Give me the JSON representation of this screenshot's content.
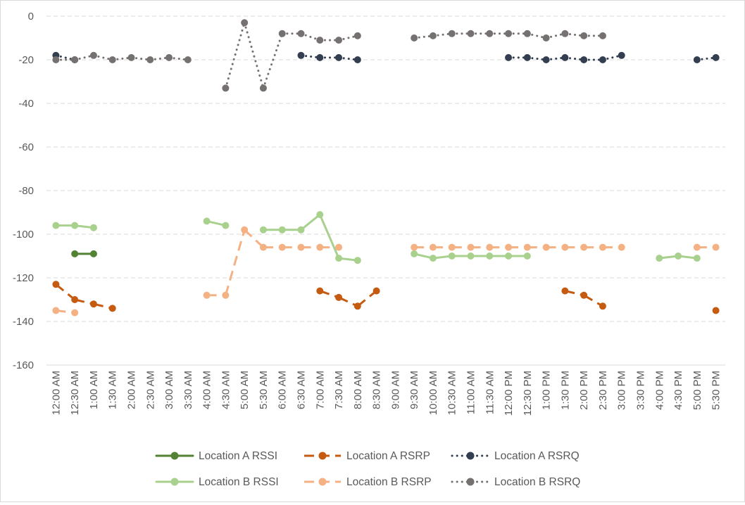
{
  "chart_data": {
    "type": "line",
    "title": "",
    "xlabel": "",
    "ylabel": "",
    "ylim": [
      -160,
      0
    ],
    "y_ticks": [
      0,
      -20,
      -40,
      -60,
      -80,
      -100,
      -120,
      -140,
      -160
    ],
    "y_tick_labels": [
      "0",
      "-20",
      "-40",
      "-60",
      "-80",
      "-100",
      "-120",
      "-140",
      "-160"
    ],
    "grid": "horizontal dashed",
    "legend_position": "bottom",
    "categories": [
      "12:00 AM",
      "12:30 AM",
      "1:00 AM",
      "1:30 AM",
      "2:00 AM",
      "2:30 AM",
      "3:00 AM",
      "3:30 AM",
      "4:00 AM",
      "4:30 AM",
      "5:00 AM",
      "5:30 AM",
      "6:00 AM",
      "6:30 AM",
      "7:00 AM",
      "7:30 AM",
      "8:00 AM",
      "8:30 AM",
      "9:00 AM",
      "9:30 AM",
      "10:00 AM",
      "10:30 AM",
      "11:00 AM",
      "11:30 AM",
      "12:00 PM",
      "12:30 PM",
      "1:00 PM",
      "1:30 PM",
      "2:00 PM",
      "2:30 PM",
      "3:00 PM",
      "3:30 PM",
      "4:00 PM",
      "4:30 PM",
      "5:00 PM",
      "5:30 PM"
    ],
    "series": [
      {
        "name": "Location A RSSI",
        "color": "#548235",
        "style": "solid",
        "values": [
          null,
          -109,
          -109,
          null,
          null,
          null,
          null,
          null,
          null,
          null,
          null,
          null,
          null,
          null,
          null,
          null,
          null,
          null,
          null,
          null,
          null,
          null,
          null,
          null,
          null,
          null,
          null,
          null,
          null,
          null,
          null,
          null,
          null,
          null,
          null,
          null
        ]
      },
      {
        "name": "Location A RSRP",
        "color": "#C55A11",
        "style": "dash",
        "values": [
          -123,
          -130,
          -132,
          -134,
          null,
          null,
          null,
          null,
          null,
          null,
          null,
          null,
          null,
          null,
          -126,
          -129,
          -133,
          -126,
          null,
          null,
          null,
          null,
          null,
          null,
          null,
          null,
          null,
          -126,
          -128,
          -133,
          null,
          null,
          null,
          null,
          null,
          -135
        ]
      },
      {
        "name": "Location A RSRQ",
        "color": "#333F50",
        "style": "dot",
        "values": [
          -18,
          -20,
          null,
          null,
          null,
          null,
          null,
          null,
          null,
          null,
          null,
          null,
          null,
          -18,
          -19,
          -19,
          -20,
          null,
          null,
          null,
          null,
          null,
          null,
          null,
          -19,
          -19,
          -20,
          -19,
          -20,
          -20,
          -18,
          null,
          null,
          null,
          -20,
          -19
        ]
      },
      {
        "name": "Location B RSSI",
        "color": "#A9D18E",
        "style": "solid",
        "values": [
          -96,
          -96,
          -97,
          null,
          null,
          null,
          null,
          null,
          -94,
          -96,
          null,
          -98,
          -98,
          -98,
          -91,
          -111,
          -112,
          null,
          null,
          -109,
          -111,
          -110,
          -110,
          -110,
          -110,
          -110,
          null,
          null,
          null,
          null,
          null,
          null,
          -111,
          -110,
          -111,
          null
        ]
      },
      {
        "name": "Location B  RSRP",
        "color": "#F4B183",
        "style": "dash",
        "values": [
          -135,
          -136,
          null,
          null,
          null,
          null,
          null,
          null,
          -128,
          -128,
          -98,
          -106,
          -106,
          -106,
          -106,
          -106,
          null,
          null,
          null,
          -106,
          -106,
          -106,
          -106,
          -106,
          -106,
          -106,
          -106,
          -106,
          -106,
          -106,
          -106,
          null,
          null,
          null,
          -106,
          -106
        ]
      },
      {
        "name": "Location B  RSRQ",
        "color": "#767171",
        "style": "dot",
        "values": [
          -20,
          -20,
          -18,
          -20,
          -19,
          -20,
          -19,
          -20,
          null,
          -33,
          -3,
          -33,
          -8,
          -8,
          -11,
          -11,
          -9,
          null,
          null,
          -10,
          -9,
          -8,
          -8,
          -8,
          -8,
          -8,
          -10,
          -8,
          -9,
          -9,
          null,
          null,
          null,
          null,
          null,
          null
        ]
      }
    ]
  }
}
